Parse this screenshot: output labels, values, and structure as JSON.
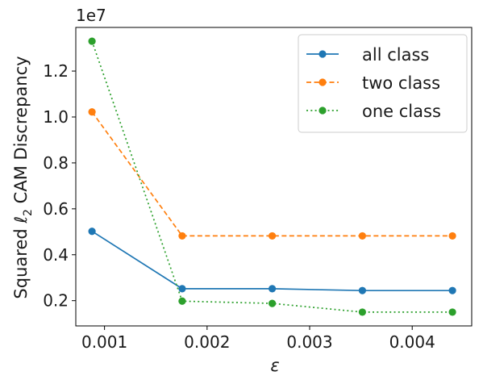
{
  "chart_data": {
    "type": "line",
    "title": "",
    "xlabel": "ε",
    "ylabel_prefix": "Squared ",
    "ylabel_ell": "ℓ",
    "ylabel_sub": "2",
    "ylabel_suffix": " CAM Discrepancy",
    "y_offset_label": "1e7",
    "y_scale_multiplier": 10000000,
    "xlim": [
      0.00072,
      0.00458
    ],
    "ylim": [
      0.9,
      13.9
    ],
    "x_ticks": [
      0.001,
      0.002,
      0.003,
      0.004
    ],
    "x_tick_labels": [
      "0.001",
      "0.002",
      "0.003",
      "0.004"
    ],
    "y_ticks": [
      2,
      4,
      6,
      8,
      10,
      12
    ],
    "y_tick_labels": [
      "0.2",
      "0.4",
      "0.6",
      "0.8",
      "1.0",
      "1.2"
    ],
    "x": [
      0.000878,
      0.001757,
      0.002635,
      0.003514,
      0.004392
    ],
    "series": [
      {
        "name": "all class",
        "values": [
          5.02,
          2.52,
          2.52,
          2.44,
          2.44
        ],
        "color": "#1f77b4",
        "dash": "solid"
      },
      {
        "name": "two class",
        "values": [
          10.22,
          4.82,
          4.82,
          4.82,
          4.82
        ],
        "color": "#ff7f0e",
        "dash": "dashed"
      },
      {
        "name": "one class",
        "values": [
          13.3,
          1.98,
          1.88,
          1.5,
          1.5
        ],
        "color": "#2ca02c",
        "dash": "dotted"
      }
    ],
    "grid": false,
    "legend_position": "top-right"
  }
}
